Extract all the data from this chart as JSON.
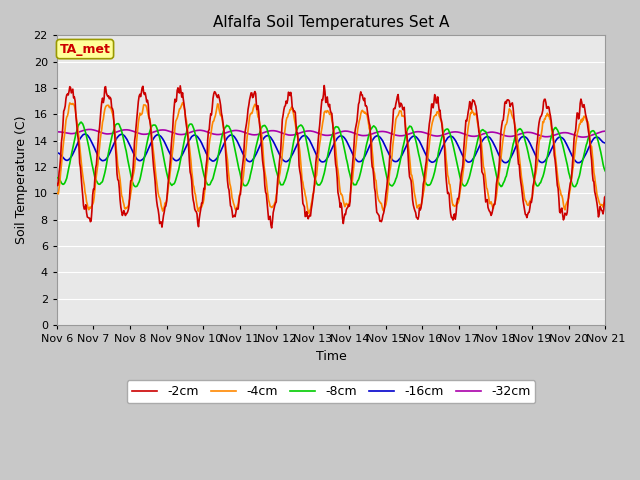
{
  "title": "Alfalfa Soil Temperatures Set A",
  "xlabel": "Time",
  "ylabel": "Soil Temperature (C)",
  "ylim": [
    0,
    22
  ],
  "yticks": [
    0,
    2,
    4,
    6,
    8,
    10,
    12,
    14,
    16,
    18,
    20,
    22
  ],
  "x_labels": [
    "Nov 6",
    "Nov 7",
    "Nov 8",
    "Nov 9",
    "Nov 10",
    "Nov 11",
    "Nov 12",
    "Nov 13",
    "Nov 14",
    "Nov 15",
    "Nov 16",
    "Nov 17",
    "Nov 18",
    "Nov 19",
    "Nov 20",
    "Nov 21"
  ],
  "colors": {
    "-2cm": "#cc0000",
    "-4cm": "#ff8800",
    "-8cm": "#00cc00",
    "-16cm": "#0000cc",
    "-32cm": "#aa00aa"
  },
  "annotation": "TA_met",
  "annotation_color": "#cc0000",
  "annotation_bg": "#ffff99",
  "fig_bg": "#c8c8c8",
  "plot_bg": "#e8e8e8",
  "grid_color": "#ffffff",
  "title_fontsize": 11,
  "axis_label_fontsize": 9,
  "tick_fontsize": 8,
  "legend_fontsize": 9
}
